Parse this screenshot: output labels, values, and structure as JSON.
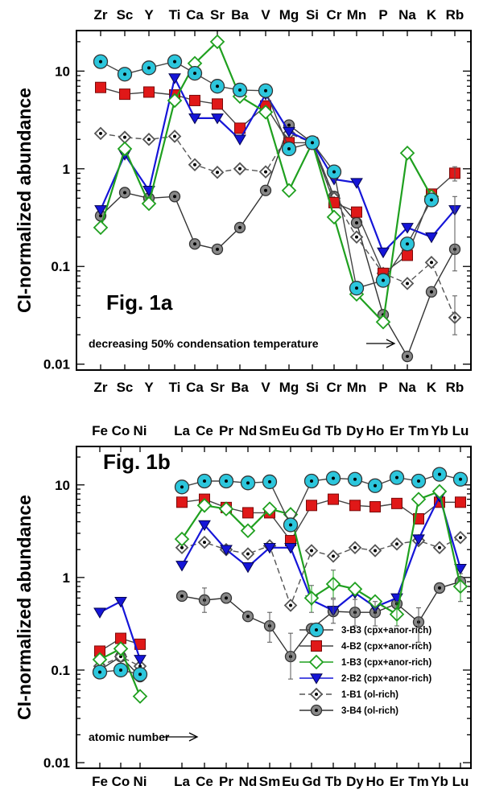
{
  "colors": {
    "3-B3": "#2cc6dc",
    "4-B2": "#e01818",
    "1-B3": "#1fa01f",
    "2-B2": "#1515d8",
    "1-B1": "#555555",
    "3-B4": "#888888"
  },
  "chart_data": [
    {
      "type": "line",
      "title": "",
      "panel_label": "Fig. 1a",
      "ylabel": "CI-normalized abundance",
      "yscale": "log",
      "ylim": [
        0.01,
        30
      ],
      "yticks": [
        "0.01",
        "0.1",
        "1",
        "10"
      ],
      "categories": [
        "Zr",
        "Sc",
        "Y",
        "Ti",
        "Ca",
        "Sr",
        "Ba",
        "V",
        "Mg",
        "Si",
        "Cr",
        "Mn",
        "P",
        "Na",
        "K",
        "Rb"
      ],
      "annotation": "decreasing 50% condensation temperature",
      "series": [
        {
          "key": "3-B3",
          "values": [
            12.5,
            9.3,
            10.8,
            12.5,
            9.5,
            7,
            6.4,
            6.3,
            1.6,
            1.85,
            0.93,
            0.06,
            0.072,
            0.17,
            0.48,
            null
          ]
        },
        {
          "key": "4-B2",
          "values": [
            6.8,
            5.8,
            6.1,
            5.7,
            5,
            4.6,
            2.6,
            4.4,
            1.85,
            1.85,
            0.45,
            0.36,
            0.085,
            0.13,
            0.55,
            0.9
          ]
        },
        {
          "key": "1-B3",
          "values": [
            0.25,
            1.6,
            0.44,
            5,
            12,
            20,
            5.5,
            3.8,
            0.6,
            1.85,
            0.32,
            0.052,
            0.027,
            1.45,
            0.52,
            null
          ]
        },
        {
          "key": "2-B2",
          "values": [
            0.38,
            1.4,
            0.6,
            8.5,
            3.3,
            3.3,
            2,
            5.8,
            2.4,
            1.85,
            0.78,
            0.72,
            0.14,
            0.25,
            0.2,
            0.38
          ]
        },
        {
          "key": "1-B1",
          "values": [
            2.3,
            2.1,
            2,
            2.15,
            1.1,
            0.92,
            1,
            0.93,
            2.3,
            1.85,
            0.5,
            0.2,
            0.085,
            0.067,
            0.11,
            0.03
          ]
        },
        {
          "key": "3-B4",
          "values": [
            0.33,
            0.57,
            0.5,
            0.52,
            0.17,
            0.15,
            0.25,
            0.6,
            2.8,
            1.85,
            0.52,
            0.28,
            0.032,
            0.012,
            0.055,
            0.15
          ]
        }
      ]
    },
    {
      "type": "line",
      "title": "",
      "panel_label": "Fig. 1b",
      "ylabel": "CI-normalized abundance",
      "yscale": "log",
      "ylim": [
        0.01,
        30
      ],
      "yticks": [
        "0.01",
        "0.1",
        "1",
        "10"
      ],
      "categories": [
        "Fe",
        "Co",
        "Ni",
        "",
        "La",
        "Ce",
        "Pr",
        "Nd",
        "Sm",
        "Eu",
        "Gd",
        "Tb",
        "Dy",
        "Ho",
        "Er",
        "Tm",
        "Yb",
        "Lu"
      ],
      "category_label_groups": [
        "FeCoNi",
        "LaCePrNdSmEuGdTbDyHoErTmYbLu"
      ],
      "annotation": "atomic number",
      "series": [
        {
          "key": "3-B3",
          "values": [
            0.095,
            0.1,
            0.09,
            null,
            9.5,
            11,
            11,
            10.5,
            10.8,
            3.7,
            11,
            11.8,
            11.5,
            9.8,
            12,
            11,
            13,
            11.5
          ]
        },
        {
          "key": "4-B2",
          "values": [
            0.16,
            0.22,
            0.19,
            null,
            6.5,
            7,
            5.7,
            5,
            5,
            2.5,
            6,
            7,
            6,
            5.8,
            6.3,
            4.3,
            6.5,
            6.5
          ]
        },
        {
          "key": "1-B3",
          "values": [
            0.13,
            0.17,
            0.052,
            null,
            2.6,
            6,
            5.5,
            3.2,
            5.5,
            4.8,
            0.6,
            0.85,
            0.75,
            0.55,
            0.4,
            7,
            8.5,
            0.8
          ]
        },
        {
          "key": "2-B2",
          "values": [
            0.42,
            0.55,
            0.13,
            null,
            1.35,
            3.7,
            2,
            1.3,
            2.1,
            2.1,
            0.57,
            0.44,
            0.68,
            0.48,
            0.6,
            2.6,
            7.5,
            1.25
          ]
        },
        {
          "key": "1-B1",
          "values": [
            0.11,
            0.14,
            0.11,
            null,
            2.1,
            2.4,
            2,
            1.8,
            2.2,
            0.5,
            1.95,
            1.7,
            2.1,
            1.95,
            2.3,
            2.5,
            2.1,
            2.7
          ]
        },
        {
          "key": "3-B4",
          "values": [
            0.1,
            0.14,
            0.085,
            null,
            0.63,
            0.57,
            0.6,
            0.38,
            0.3,
            0.14,
            0.28,
            0.43,
            0.42,
            0.42,
            0.52,
            0.33,
            0.77,
            0.9
          ]
        }
      ],
      "legend_position": "bottom-right",
      "legend": [
        {
          "key": "3-B3",
          "label": "3-B3 (cpx+anor-rich)"
        },
        {
          "key": "4-B2",
          "label": "4-B2 (cpx+anor-rich)"
        },
        {
          "key": "1-B3",
          "label": "1-B3 (cpx+anor-rich)"
        },
        {
          "key": "2-B2",
          "label": "2-B2 (cpx+anor-rich)"
        },
        {
          "key": "1-B1",
          "label": "1-B1 (ol-rich)"
        },
        {
          "key": "3-B4",
          "label": "3-B4 (ol-rich)"
        }
      ]
    }
  ]
}
